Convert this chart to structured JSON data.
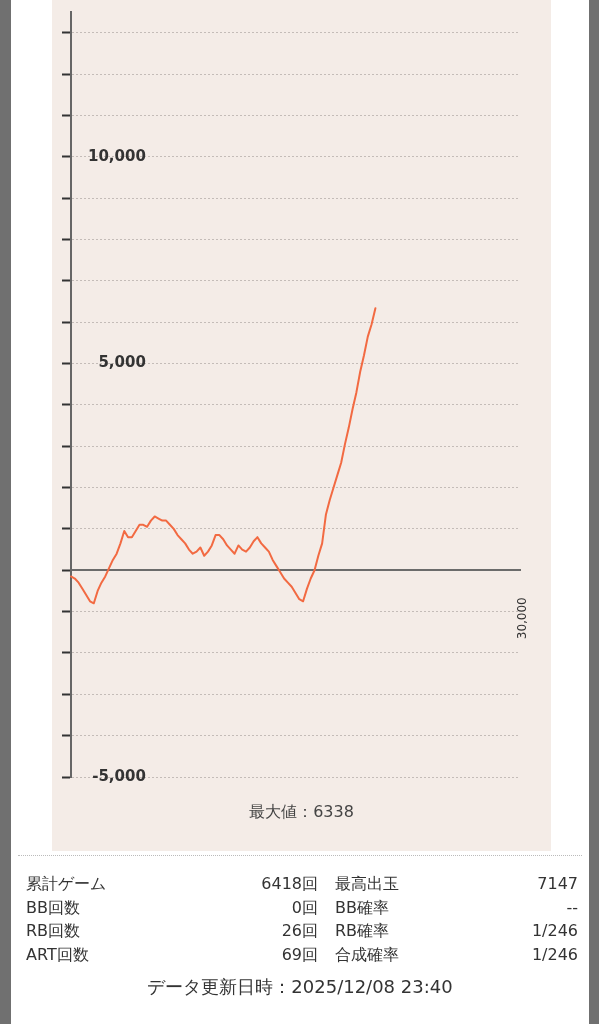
{
  "chart_data": {
    "type": "line",
    "categories": [
      null,
      null,
      null,
      null,
      null,
      null,
      null,
      null,
      null,
      null,
      null,
      null,
      null,
      null,
      null,
      null,
      null,
      null,
      null,
      null,
      null,
      null,
      null,
      null,
      null,
      null,
      null,
      null,
      null,
      null,
      null,
      null,
      null,
      null,
      null,
      null,
      null,
      null,
      null,
      null,
      null,
      null,
      null,
      null,
      null,
      null,
      null,
      null,
      null,
      null,
      null,
      null,
      null,
      null,
      null,
      null,
      null,
      null,
      null,
      null,
      null,
      null,
      null,
      null,
      null,
      null,
      null,
      null,
      null,
      null,
      null,
      null,
      null,
      null,
      null,
      null,
      null,
      null,
      null,
      null,
      null,
      null,
      null,
      null,
      null,
      null,
      null,
      null,
      null,
      null,
      null,
      null,
      null,
      null,
      null,
      null,
      null,
      null,
      null,
      null,
      null,
      null,
      null,
      null,
      null,
      null,
      null,
      null,
      null,
      null,
      null,
      null,
      null,
      null,
      null,
      null,
      null,
      null,
      null
    ],
    "values": [
      -150,
      -200,
      -300,
      -450,
      -600,
      -750,
      -800,
      -500,
      -300,
      -150,
      50,
      250,
      400,
      650,
      950,
      800,
      800,
      950,
      1100,
      1100,
      1050,
      1200,
      1300,
      1250,
      1200,
      1200,
      1100,
      1000,
      850,
      750,
      650,
      500,
      400,
      450,
      550,
      350,
      450,
      600,
      850,
      850,
      750,
      600,
      500,
      400,
      600,
      500,
      450,
      550,
      700,
      800,
      650,
      550,
      450,
      250,
      100,
      -50,
      -200,
      -300,
      -400,
      -550,
      -700,
      -750,
      -450,
      -200,
      0,
      350,
      650,
      1350,
      1700,
      2000,
      2300,
      2600,
      3050,
      3450,
      3900,
      4300,
      4800,
      5200,
      5650,
      5950,
      6338,
      null,
      null,
      null,
      null,
      null,
      null,
      null,
      null,
      null,
      null,
      null,
      null,
      null,
      null,
      null,
      null,
      null,
      null,
      null,
      null,
      null,
      null,
      null,
      null,
      null,
      null,
      null,
      null,
      null,
      null,
      null,
      null,
      null,
      null,
      null,
      null,
      null,
      null
    ],
    "color": "#f26a42",
    "ylim": [
      -5000,
      13500
    ],
    "yticks": [
      {
        "value": -5000,
        "label": "-5,000"
      },
      {
        "value": -4000,
        "label": null
      },
      {
        "value": -3000,
        "label": null
      },
      {
        "value": -2000,
        "label": null
      },
      {
        "value": -1000,
        "label": null
      },
      {
        "value": 0,
        "label": null
      },
      {
        "value": 1000,
        "label": null
      },
      {
        "value": 2000,
        "label": null
      },
      {
        "value": 3000,
        "label": null
      },
      {
        "value": 4000,
        "label": null
      },
      {
        "value": 5000,
        "label": "5,000"
      },
      {
        "value": 6000,
        "label": null
      },
      {
        "value": 7000,
        "label": null
      },
      {
        "value": 8000,
        "label": null
      },
      {
        "value": 9000,
        "label": null
      },
      {
        "value": 10000,
        "label": "10,000"
      },
      {
        "value": 11000,
        "label": null
      },
      {
        "value": 12000,
        "label": null
      },
      {
        "value": 13000,
        "label": null
      }
    ],
    "grid": "y",
    "marker": "none",
    "annotations": [
      "30,000",
      "最大値：6338",
      "累計ゲーム",
      "6418回",
      "最高出玉",
      "7147",
      "BB回数",
      "0回",
      "BB確率",
      "--",
      "RB回数",
      "26回",
      "RB確率",
      "1/246",
      "ART回数",
      "69回",
      "合成確率",
      "1/246",
      "データ更新日時：2025/12/08 23:40"
    ]
  }
}
